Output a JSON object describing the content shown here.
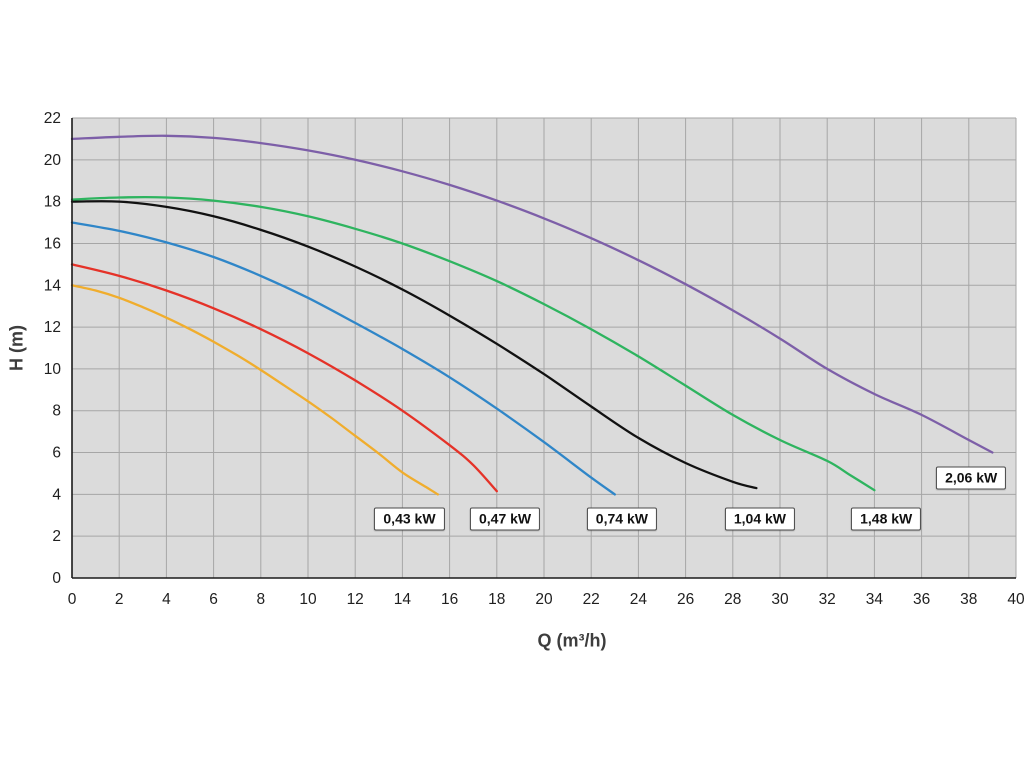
{
  "page": {
    "background": "#ffffff"
  },
  "chart_data": {
    "type": "line",
    "title": "",
    "xlabel": "Q (m³/h)",
    "ylabel": "H (m)",
    "xlim": [
      0,
      40
    ],
    "ylim": [
      0,
      22
    ],
    "xticks": [
      0,
      2,
      4,
      6,
      8,
      10,
      12,
      14,
      16,
      18,
      20,
      22,
      24,
      26,
      28,
      30,
      32,
      34,
      36,
      38,
      40
    ],
    "yticks": [
      0,
      2,
      4,
      6,
      8,
      10,
      12,
      14,
      16,
      18,
      20,
      22
    ],
    "grid": true,
    "legend_position": "curve-end-boxes",
    "plot_bg": "#dbdbdb",
    "grid_color": "#a6a6a6",
    "axis_color": "#1a1a1a",
    "tick_color": "#1f1f1f",
    "series": [
      {
        "name": "0,43 kW",
        "color": "#f0ad2d",
        "label": {
          "x": 14.3,
          "y": 2.8
        },
        "points": [
          [
            0,
            14
          ],
          [
            1,
            13.75
          ],
          [
            2,
            13.4
          ],
          [
            3,
            12.95
          ],
          [
            4,
            12.45
          ],
          [
            5,
            11.9
          ],
          [
            6,
            11.3
          ],
          [
            7,
            10.65
          ],
          [
            8,
            9.95
          ],
          [
            9,
            9.2
          ],
          [
            10,
            8.45
          ],
          [
            11,
            7.65
          ],
          [
            12,
            6.8
          ],
          [
            13,
            5.95
          ],
          [
            14,
            5.05
          ],
          [
            15,
            4.35
          ],
          [
            15.5,
            4.0
          ]
        ]
      },
      {
        "name": "0,47 kW",
        "color": "#e53228",
        "label": {
          "x": 18.35,
          "y": 2.8
        },
        "points": [
          [
            0,
            15
          ],
          [
            2,
            14.45
          ],
          [
            4,
            13.75
          ],
          [
            6,
            12.9
          ],
          [
            8,
            11.9
          ],
          [
            10,
            10.75
          ],
          [
            12,
            9.45
          ],
          [
            14,
            8.0
          ],
          [
            16,
            6.35
          ],
          [
            17,
            5.4
          ],
          [
            18,
            4.15
          ]
        ]
      },
      {
        "name": "0,74 kW",
        "color": "#2f86c8",
        "label": {
          "x": 23.3,
          "y": 2.8
        },
        "points": [
          [
            0,
            17
          ],
          [
            2,
            16.6
          ],
          [
            4,
            16.05
          ],
          [
            6,
            15.35
          ],
          [
            8,
            14.45
          ],
          [
            10,
            13.4
          ],
          [
            12,
            12.2
          ],
          [
            14,
            10.95
          ],
          [
            16,
            9.6
          ],
          [
            18,
            8.1
          ],
          [
            20,
            6.5
          ],
          [
            22,
            4.8
          ],
          [
            23,
            4.0
          ]
        ]
      },
      {
        "name": "1,04 kW",
        "color": "#111111",
        "label": {
          "x": 29.15,
          "y": 2.8
        },
        "points": [
          [
            0,
            18
          ],
          [
            2,
            18.0
          ],
          [
            4,
            17.75
          ],
          [
            6,
            17.3
          ],
          [
            8,
            16.65
          ],
          [
            10,
            15.85
          ],
          [
            12,
            14.9
          ],
          [
            14,
            13.8
          ],
          [
            16,
            12.55
          ],
          [
            18,
            11.2
          ],
          [
            20,
            9.75
          ],
          [
            22,
            8.2
          ],
          [
            24,
            6.7
          ],
          [
            26,
            5.5
          ],
          [
            28,
            4.6
          ],
          [
            29,
            4.3
          ]
        ]
      },
      {
        "name": "1,48 kW",
        "color": "#2eb45f",
        "label": {
          "x": 34.5,
          "y": 2.8
        },
        "points": [
          [
            0,
            18.1
          ],
          [
            2,
            18.2
          ],
          [
            4,
            18.2
          ],
          [
            6,
            18.05
          ],
          [
            8,
            17.75
          ],
          [
            10,
            17.3
          ],
          [
            12,
            16.7
          ],
          [
            14,
            16.0
          ],
          [
            16,
            15.15
          ],
          [
            18,
            14.2
          ],
          [
            20,
            13.1
          ],
          [
            22,
            11.9
          ],
          [
            24,
            10.6
          ],
          [
            26,
            9.2
          ],
          [
            28,
            7.8
          ],
          [
            30,
            6.6
          ],
          [
            32,
            5.6
          ],
          [
            33,
            4.9
          ],
          [
            34,
            4.2
          ]
        ]
      },
      {
        "name": "2,06 kW",
        "color": "#7d5fa8",
        "label": {
          "x": 38.1,
          "y": 4.8
        },
        "points": [
          [
            0,
            21
          ],
          [
            2,
            21.1
          ],
          [
            4,
            21.15
          ],
          [
            6,
            21.05
          ],
          [
            8,
            20.8
          ],
          [
            10,
            20.45
          ],
          [
            12,
            20.0
          ],
          [
            14,
            19.45
          ],
          [
            16,
            18.8
          ],
          [
            18,
            18.05
          ],
          [
            20,
            17.2
          ],
          [
            22,
            16.25
          ],
          [
            24,
            15.2
          ],
          [
            26,
            14.05
          ],
          [
            28,
            12.8
          ],
          [
            30,
            11.45
          ],
          [
            32,
            10.0
          ],
          [
            34,
            8.8
          ],
          [
            36,
            7.8
          ],
          [
            38,
            6.6
          ],
          [
            39,
            6.0
          ]
        ]
      }
    ]
  }
}
